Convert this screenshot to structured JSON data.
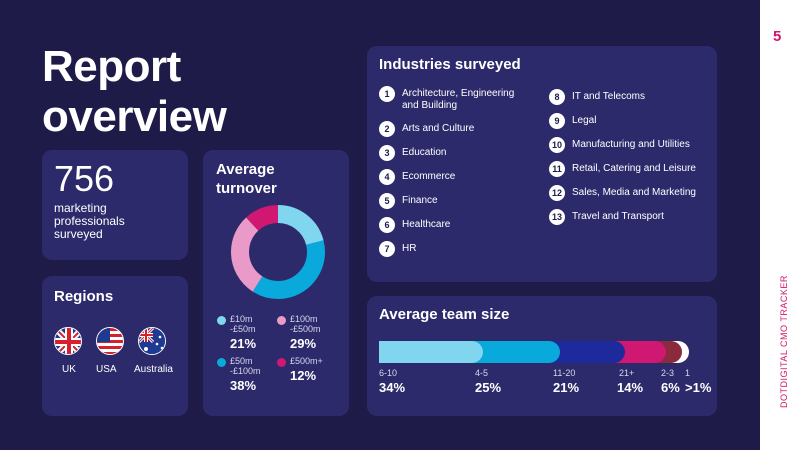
{
  "page": {
    "number": "5",
    "side_label": "DOTDIGITAL CMO TRACKER",
    "title_line1": "Report",
    "title_line2": "overview"
  },
  "stat": {
    "value": "756",
    "text": "marketing professionals surveyed"
  },
  "regions": {
    "title": "Regions",
    "items": [
      {
        "label": "UK",
        "icon": "uk-flag-icon"
      },
      {
        "label": "USA",
        "icon": "usa-flag-icon"
      },
      {
        "label": "Australia",
        "icon": "australia-flag-icon"
      }
    ]
  },
  "turnover": {
    "title_line1": "Average",
    "title_line2": "turnover",
    "items": [
      {
        "label_l1": "£10m",
        "label_l2": "-£50m",
        "pct": "21%",
        "color": "#7fd6ee"
      },
      {
        "label_l1": "£100m",
        "label_l2": "-£500m",
        "pct": "29%",
        "color": "#e99ac8"
      },
      {
        "label_l1": "£50m",
        "label_l2": "-£100m",
        "pct": "38%",
        "color": "#09a9dc"
      },
      {
        "label_l1": "£500m+",
        "label_l2": "",
        "pct": "12%",
        "color": "#d01872"
      }
    ]
  },
  "industries": {
    "title": "Industries surveyed",
    "items": [
      {
        "n": "1",
        "label": "Architecture, Engineering and Building"
      },
      {
        "n": "2",
        "label": "Arts and Culture"
      },
      {
        "n": "3",
        "label": "Education"
      },
      {
        "n": "4",
        "label": "Ecommerce"
      },
      {
        "n": "5",
        "label": "Finance"
      },
      {
        "n": "6",
        "label": "Healthcare"
      },
      {
        "n": "7",
        "label": "HR"
      },
      {
        "n": "8",
        "label": "IT and Telecoms"
      },
      {
        "n": "9",
        "label": "Legal"
      },
      {
        "n": "10",
        "label": "Manufacturing and Utilities"
      },
      {
        "n": "11",
        "label": "Retail, Catering and Leisure"
      },
      {
        "n": "12",
        "label": "Sales, Media and Marketing"
      },
      {
        "n": "13",
        "label": "Travel and Transport"
      }
    ]
  },
  "team": {
    "title": "Average team size",
    "items": [
      {
        "label": "6-10",
        "pct": "34%",
        "value": 34,
        "color": "#7fd6ee"
      },
      {
        "label": "4-5",
        "pct": "25%",
        "value": 25,
        "color": "#09a9dc"
      },
      {
        "label": "11-20",
        "pct": "21%",
        "value": 21,
        "color": "#1e2a9c"
      },
      {
        "label": "21+",
        "pct": "14%",
        "value": 14,
        "color": "#d01872"
      },
      {
        "label": "2-3",
        "pct": "6%",
        "value": 6,
        "color": "#8a2a3c"
      },
      {
        "label": "1",
        "pct": ">1%",
        "value": 1,
        "color": "#ffffff"
      }
    ]
  }
}
